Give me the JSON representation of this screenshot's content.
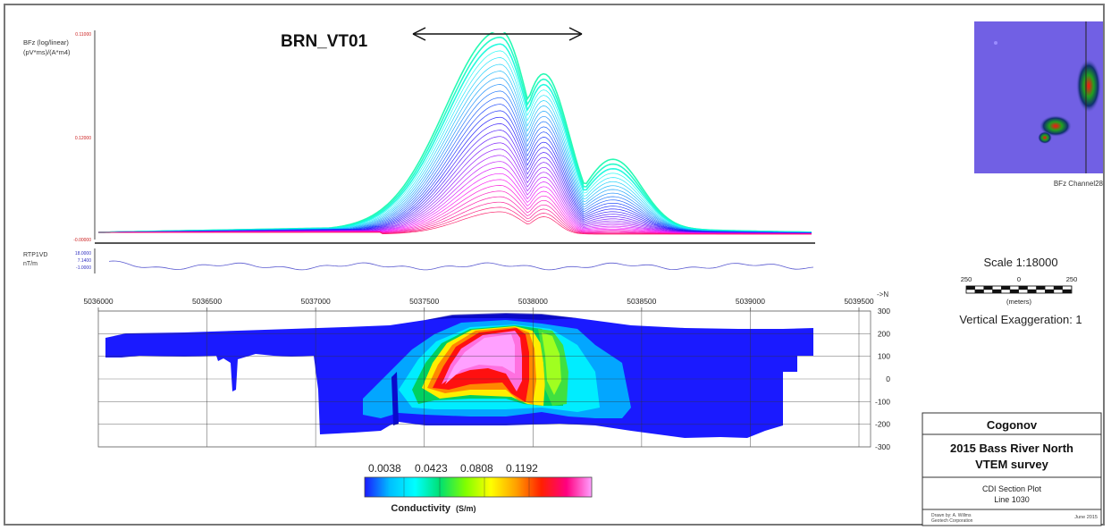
{
  "chart_data": {
    "type": "line",
    "profile": {
      "ylabel_line1": "BFz (log/linear)",
      "ylabel_line2": "(pV*ms)/(A*m4)",
      "yticks": [
        "0.11000",
        "0.12000",
        "-0.00000"
      ],
      "target_label": "BRN_VT01",
      "peak_position_n": 5037850,
      "secondary_peak_n": 5038050
    },
    "magnetics": {
      "label_line1": "RTP1VD",
      "label_line2": "nT/m",
      "yticks": [
        "18.0000",
        "7.1400",
        "-1.0000"
      ]
    },
    "section": {
      "x_unit": "->N",
      "x_ticks": [
        "5036000",
        "5036500",
        "5037000",
        "5037500",
        "5038000",
        "5038500",
        "5039000",
        "5039500"
      ],
      "x_range": [
        5036000,
        5039500
      ],
      "y_ticks": [
        "300",
        "200",
        "100",
        "0",
        "-100",
        "-200",
        "-300"
      ],
      "y_range": [
        -300,
        300
      ],
      "grid": true
    },
    "colorbar": {
      "ticks": [
        "0.0038",
        "0.0423",
        "0.0808",
        "0.1192"
      ],
      "label": "Conductivity",
      "unit": "(S/m)",
      "colors": [
        "#1a1aff",
        "#00bfff",
        "#00ffff",
        "#00e070",
        "#80ff00",
        "#ffff00",
        "#ffa000",
        "#ff2000",
        "#ff0080",
        "#ffa0ff"
      ]
    }
  },
  "scale": {
    "title": "Scale 1:18000",
    "labels": [
      "250",
      "0",
      "250"
    ],
    "unit": "(meters)",
    "vertical_exaggeration": "Vertical Exaggeration: 1"
  },
  "inset": {
    "caption": "BFz Channel28"
  },
  "titleblock": {
    "company": "Cogonov",
    "survey_line1": "2015 Bass River North",
    "survey_line2": "VTEM survey",
    "plot_line1": "CDI Section Plot",
    "plot_line2": "Line 1030",
    "drawn_line1": "Drawn by: A. Willms",
    "drawn_line2": "Geotech Corporation",
    "date": "June 2015"
  }
}
